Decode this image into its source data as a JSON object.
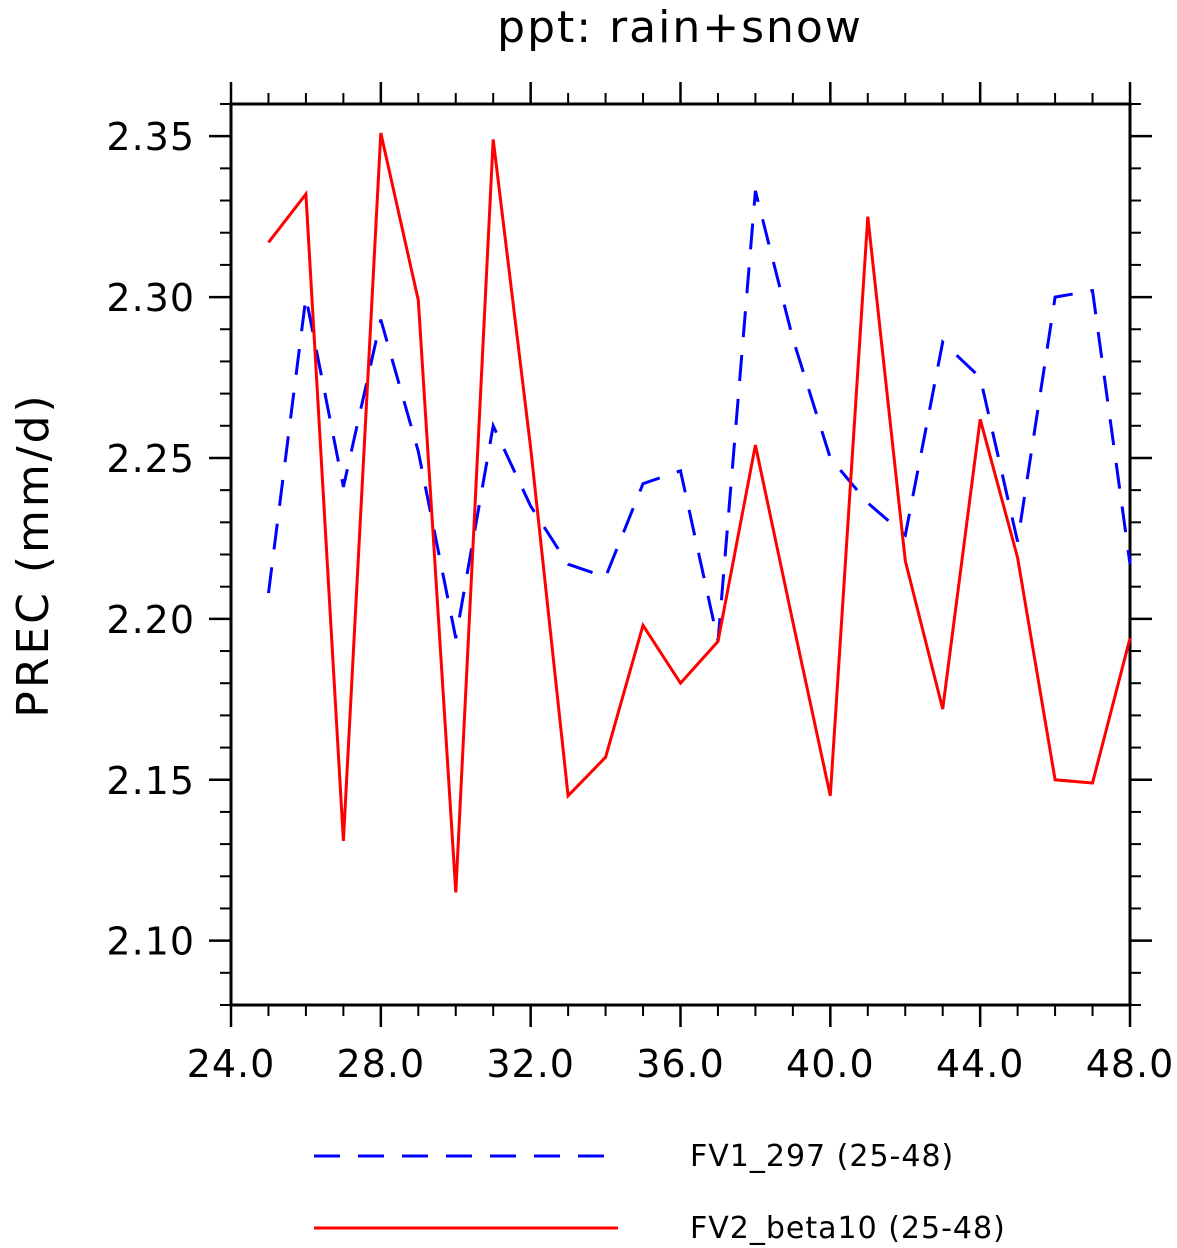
{
  "chart_data": {
    "type": "line",
    "title": "ppt: rain+snow",
    "xlabel": "",
    "ylabel": "PREC  (mm/d)",
    "xlim": [
      24,
      48
    ],
    "ylim": [
      2.08,
      2.36
    ],
    "xticks": [
      24,
      28,
      32,
      36,
      40,
      44,
      48
    ],
    "xtick_labels": [
      "24.0",
      "28.0",
      "32.0",
      "36.0",
      "40.0",
      "44.0",
      "48.0"
    ],
    "yticks": [
      2.1,
      2.15,
      2.2,
      2.25,
      2.3,
      2.35
    ],
    "ytick_labels": [
      "2.10",
      "2.15",
      "2.20",
      "2.25",
      "2.30",
      "2.35"
    ],
    "grid": false,
    "legend_position": "bottom",
    "x": [
      25,
      26,
      27,
      28,
      29,
      30,
      31,
      32,
      33,
      34,
      35,
      36,
      37,
      38,
      39,
      40,
      41,
      42,
      43,
      44,
      45,
      46,
      47,
      48
    ],
    "series": [
      {
        "name": "FV1_297 (25-48)",
        "color": "#0000ff",
        "style": "dashed",
        "values": [
          2.208,
          2.3,
          2.241,
          2.293,
          2.252,
          2.194,
          2.26,
          2.235,
          2.217,
          2.213,
          2.242,
          2.246,
          2.193,
          2.333,
          2.287,
          2.25,
          2.236,
          2.226,
          2.286,
          2.275,
          2.224,
          2.3,
          2.302,
          2.217
        ]
      },
      {
        "name": "FV2_beta10 (25-48)",
        "color": "#ff0000",
        "style": "solid",
        "values": [
          2.317,
          2.332,
          2.131,
          2.351,
          2.299,
          2.115,
          2.349,
          2.253,
          2.145,
          2.157,
          2.198,
          2.18,
          2.193,
          2.254,
          2.199,
          2.145,
          2.325,
          2.218,
          2.172,
          2.262,
          2.219,
          2.15,
          2.149,
          2.194
        ]
      }
    ]
  }
}
